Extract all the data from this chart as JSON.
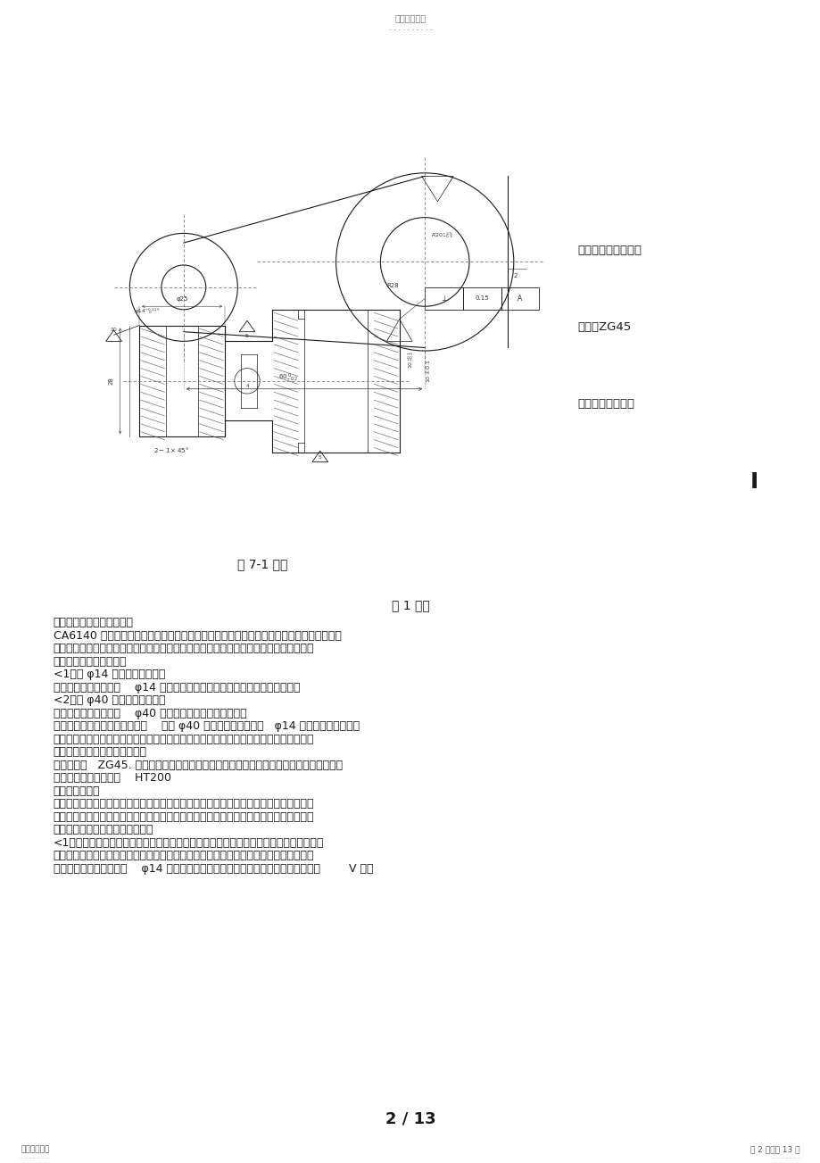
{
  "background_color": "#ffffff",
  "page_width": 9.2,
  "page_height": 13.03,
  "dpi": 100,
  "header_text": "精选学习资料",
  "header_dots": "- - - - - - - - - -",
  "footer_left": "名师归纳总结",
  "footer_left_dots": "- - - - - - -",
  "footer_right": "第 2 页，共 13 页",
  "footer_right_dots": "- - - - - - -",
  "page_number": "2 / 13",
  "figure_caption": "图 7-1 拨叉",
  "part_info_lines": [
    "零件名称：车床拨叉",
    "材料：ZG45",
    "生产纲领：中批。"
  ],
  "body_title": "图 1 拨叉",
  "body_lines": [
    "一、分析零件工艺结构性：",
    "CA6140 车床的拨叉。它位于车床变速机构中，主要起换档，使主轴回转运动按照工作者的",
    "要求工作，获得所需的速度和扭矩的作用。通过上方的力拨动下方的齿轮变速。两件零件",
    "铸为一体，加工时分开。",
    "<1）以 φ14 为中心的加工表面",
    "这一组加工表面包括：    φ14 的孔，以及其上下端面，上端面与孔有位置要求",
    "<2）以 φ40 为中心的加工表面",
    "这一组加工表面包括：    φ40 的孔，以及其上下两个端面。",
    "这两组表面有一定的位置度要求    ，即 φ40 的孔上下两个端面与   φ14 的孔有垂直度要求。",
    "由上面分析可知，加工时应先加工一组表面，再以这组加工后表面为基准加工另外一组。",
    "二、选用毛坯或明确来料状况：",
    "零件材料为   ZG45. 考虑零件在机床运行过程中所受冲击不大，零件结构又比较简单，故选",
    "择铸件毛坯。有的采用    HT200",
    "三、基面的选择",
    "基面选择是工艺规程设计中的重要工作之一。基面选择得正确与合理可以使加工质量得到",
    "保证，生产率得以提高。否则，加工工艺过程中回问题百出，更有甚者，还会造成零件的",
    "大批报废，是生产无法正常进行。",
    "<1）粗基准的选择。对于零件而言，尽可能选择不加工表面为粗基准。而对有若干个不加",
    "工表面的工件，则应以与加工表面要求相对位置精度较高的不加工表面作粗基准。根据这",
    "个基准选择原则，现选取    φ14 孔的不加工外轮廓表面作为粗基准，利用一组共两块        V 形块"
  ],
  "text_color": "#1a1a1a",
  "light_gray": "#888888"
}
